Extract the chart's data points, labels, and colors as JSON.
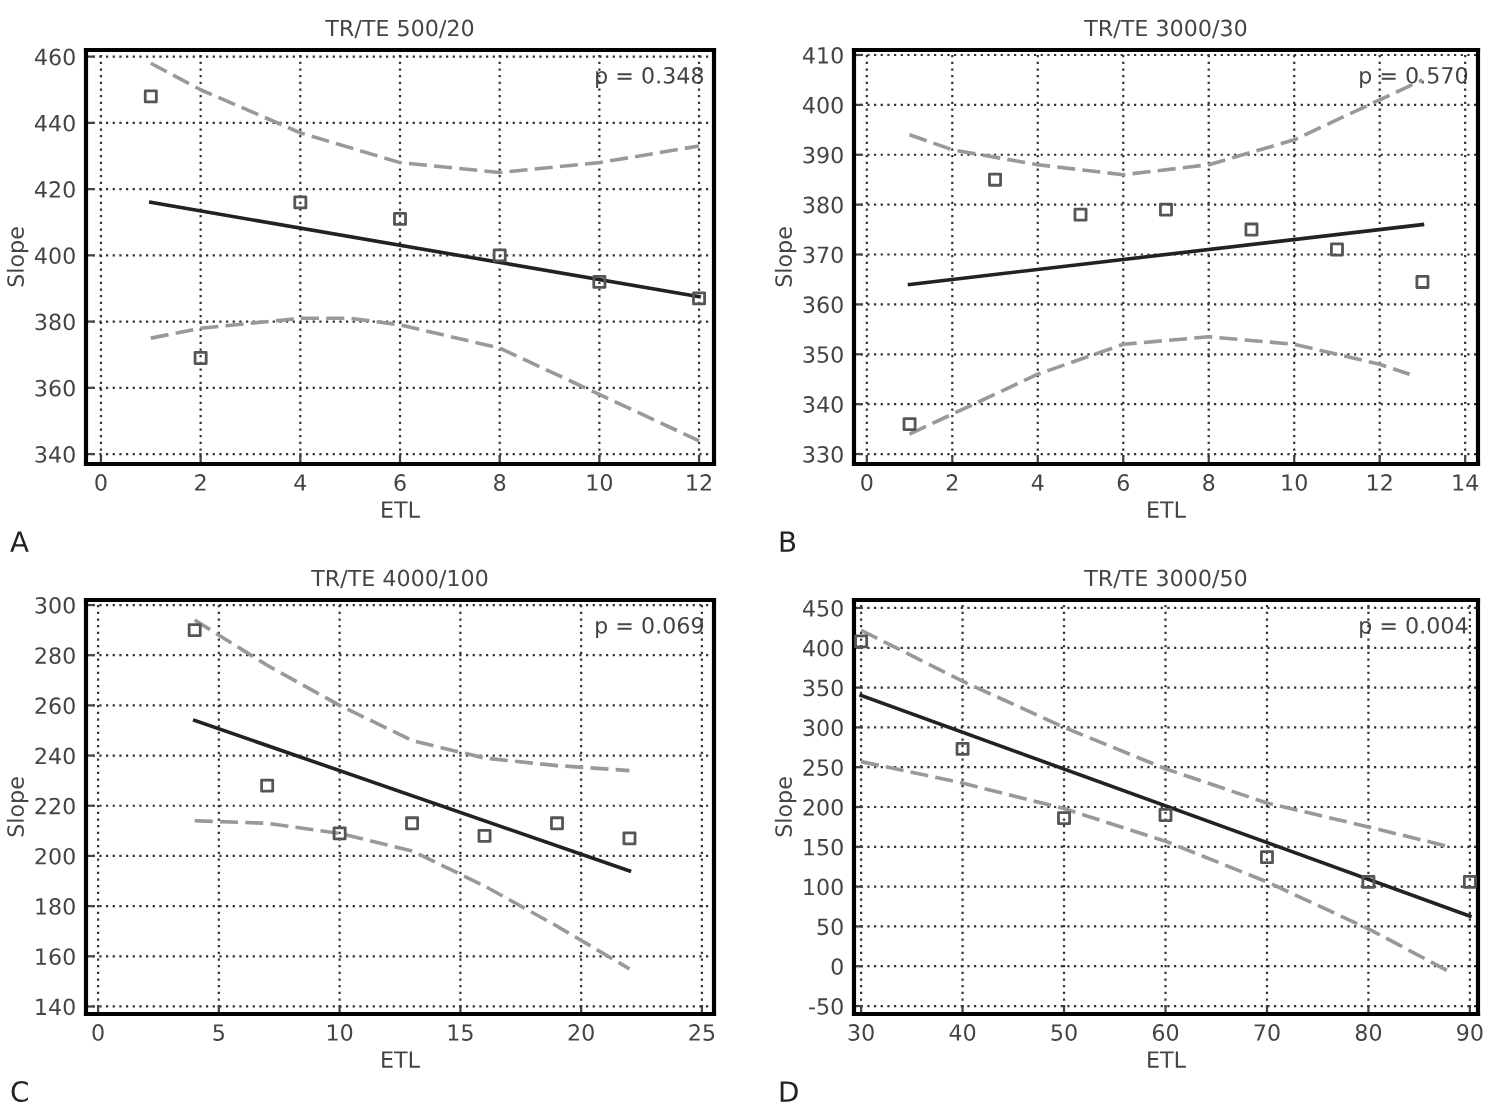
{
  "chart_data": [
    {
      "type": "scatter",
      "title": "TR/TE 500/20",
      "xlabel": "ETL",
      "ylabel": "Slope",
      "annotations": [
        "p = 0.348",
        "A"
      ],
      "xlim": [
        -0.3,
        12.3
      ],
      "ylim": [
        337,
        462
      ],
      "xticks": [
        0,
        2,
        4,
        6,
        8,
        10,
        12
      ],
      "yticks": [
        340,
        360,
        380,
        400,
        420,
        440,
        460
      ],
      "grid": true,
      "series": [
        {
          "marker": "square",
          "color": "#555555",
          "x": [
            1,
            2,
            4,
            6,
            8,
            10,
            12
          ],
          "values": [
            448,
            369,
            416,
            411,
            400,
            392,
            387
          ]
        },
        {
          "type": "line",
          "line_style": "solid",
          "color": "#222222",
          "x": [
            1,
            12
          ],
          "values": [
            416,
            387.5
          ]
        },
        {
          "type": "line",
          "line_style": "dashed",
          "color": "#999999",
          "x": [
            1,
            2,
            4,
            6,
            8,
            10,
            12
          ],
          "values": [
            458,
            450,
            437,
            428,
            425,
            428,
            433
          ]
        },
        {
          "type": "line",
          "line_style": "dashed",
          "color": "#999999",
          "x": [
            1,
            2,
            4,
            5,
            6,
            8,
            10,
            12
          ],
          "values": [
            375,
            378,
            381,
            381,
            379,
            372,
            358,
            344
          ]
        }
      ]
    },
    {
      "type": "scatter",
      "title": "TR/TE 3000/30",
      "xlabel": "ETL",
      "ylabel": "Slope",
      "annotations": [
        "p = 0.570",
        "B"
      ],
      "xlim": [
        -0.3,
        14.3
      ],
      "ylim": [
        328,
        411
      ],
      "xticks": [
        0,
        2,
        4,
        6,
        8,
        10,
        12,
        14
      ],
      "yticks": [
        330,
        340,
        350,
        360,
        370,
        380,
        390,
        400,
        410
      ],
      "grid": true,
      "series": [
        {
          "marker": "square",
          "color": "#555555",
          "x": [
            1,
            3,
            5,
            7,
            9,
            11,
            13
          ],
          "values": [
            336,
            385,
            378,
            379,
            375,
            371,
            364.5
          ]
        },
        {
          "type": "line",
          "line_style": "solid",
          "color": "#222222",
          "x": [
            1,
            13
          ],
          "values": [
            364,
            376
          ]
        },
        {
          "type": "line",
          "line_style": "dashed",
          "color": "#999999",
          "x": [
            1,
            2,
            4,
            6,
            8,
            10,
            12,
            13
          ],
          "values": [
            394,
            391,
            388,
            386,
            388,
            393,
            401,
            405
          ]
        },
        {
          "type": "line",
          "line_style": "dashed",
          "color": "#999999",
          "x": [
            1,
            2,
            4,
            6,
            8,
            10,
            12,
            12.7
          ],
          "values": [
            334,
            338,
            346,
            352,
            353.5,
            352,
            348,
            346
          ]
        }
      ]
    },
    {
      "type": "scatter",
      "title": "TR/TE 4000/100",
      "xlabel": "ETL",
      "ylabel": "Slope",
      "annotations": [
        "p = 0.069",
        "C"
      ],
      "xlim": [
        -0.5,
        25.5
      ],
      "ylim": [
        137,
        302
      ],
      "xticks": [
        0,
        5,
        10,
        15,
        20,
        25
      ],
      "yticks": [
        140,
        160,
        180,
        200,
        220,
        240,
        260,
        280,
        300
      ],
      "grid": true,
      "series": [
        {
          "marker": "square",
          "color": "#555555",
          "x": [
            4,
            7,
            10,
            13,
            16,
            19,
            22
          ],
          "values": [
            290,
            228,
            209,
            213,
            208,
            213,
            207
          ]
        },
        {
          "type": "line",
          "line_style": "solid",
          "color": "#222222",
          "x": [
            4,
            22
          ],
          "values": [
            254,
            194
          ]
        },
        {
          "type": "line",
          "line_style": "dashed",
          "color": "#999999",
          "x": [
            4,
            7,
            10,
            13,
            16,
            19,
            22
          ],
          "values": [
            294,
            276,
            260,
            246,
            239,
            236,
            234
          ]
        },
        {
          "type": "line",
          "line_style": "dashed",
          "color": "#999999",
          "x": [
            4,
            7,
            10,
            13,
            16,
            19,
            22
          ],
          "values": [
            214,
            213,
            209,
            202,
            188,
            172,
            155
          ]
        }
      ]
    },
    {
      "type": "scatter",
      "title": "TR/TE 3000/50",
      "xlabel": "ETL",
      "ylabel": "Slope",
      "annotations": [
        "p = 0.004",
        "D"
      ],
      "xlim": [
        29.3,
        90.8
      ],
      "ylim": [
        -60,
        460
      ],
      "xticks": [
        30,
        40,
        50,
        60,
        70,
        80,
        90
      ],
      "yticks": [
        -50,
        0,
        50,
        100,
        150,
        200,
        250,
        300,
        350,
        400,
        450
      ],
      "grid": true,
      "series": [
        {
          "marker": "square",
          "color": "#555555",
          "x": [
            30,
            40,
            50,
            60,
            70,
            80,
            90
          ],
          "values": [
            408,
            273,
            186,
            190,
            137,
            106,
            106
          ]
        },
        {
          "type": "line",
          "line_style": "solid",
          "color": "#222222",
          "x": [
            30,
            90
          ],
          "values": [
            340,
            63
          ]
        },
        {
          "type": "line",
          "line_style": "dashed",
          "color": "#999999",
          "x": [
            30,
            40,
            50,
            60,
            70,
            80,
            88
          ],
          "values": [
            422,
            358,
            300,
            248,
            205,
            175,
            150
          ]
        },
        {
          "type": "line",
          "line_style": "dashed",
          "color": "#999999",
          "x": [
            30,
            40,
            50,
            60,
            70,
            80,
            88
          ],
          "values": [
            257,
            230,
            198,
            157,
            106,
            47,
            -7
          ]
        }
      ]
    }
  ]
}
